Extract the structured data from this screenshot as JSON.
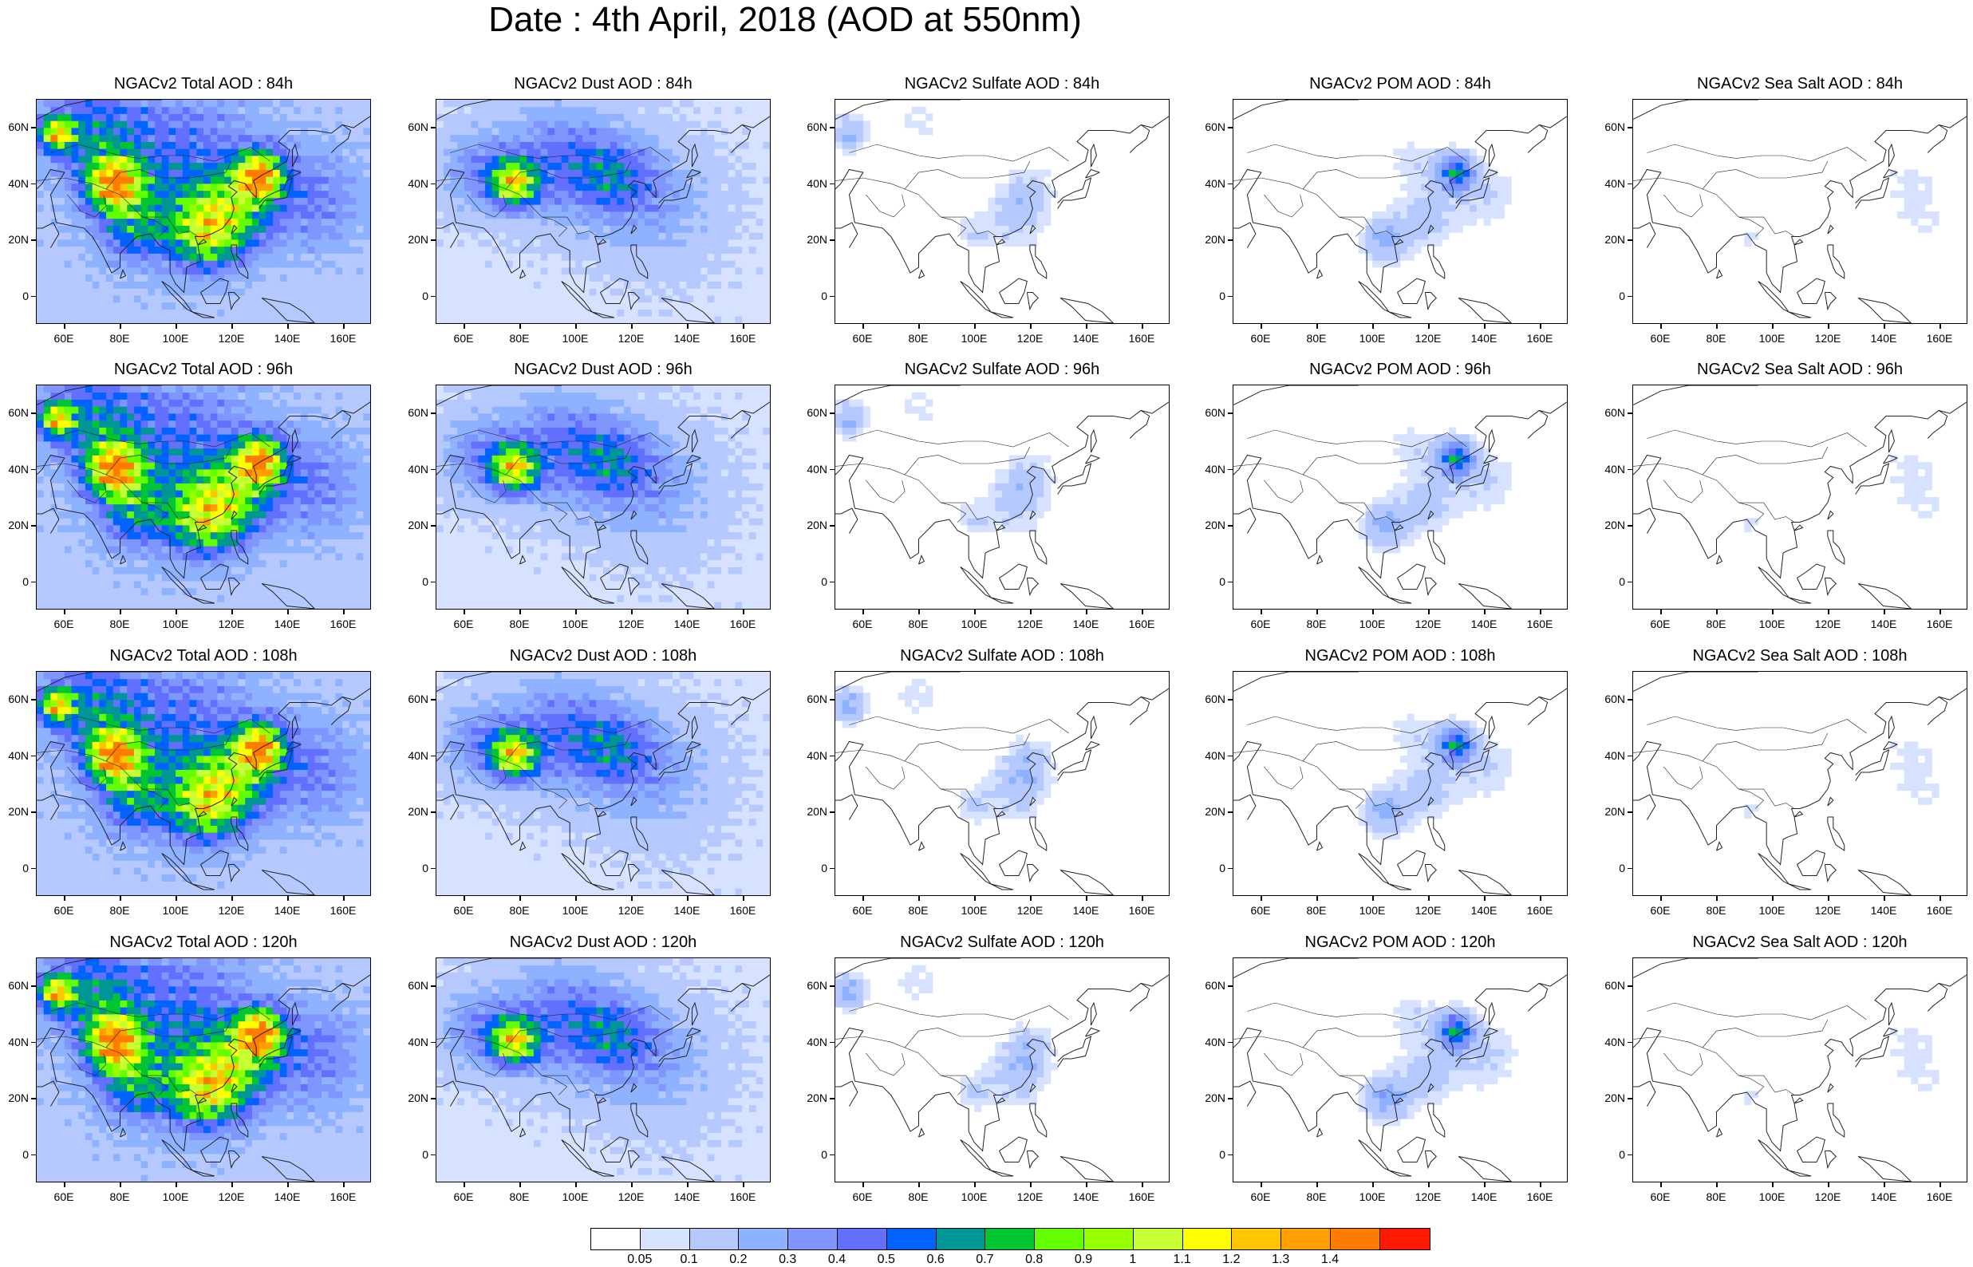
{
  "title": "Date : 4th April, 2018 (AOD at 550nm)",
  "panels": [
    [
      {
        "title": "NGACv2 Total AOD : 84h",
        "field": "total",
        "intensity": 1.0
      },
      {
        "title": "NGACv2 Dust AOD : 84h",
        "field": "dust",
        "intensity": 0.9
      },
      {
        "title": "NGACv2 Sulfate AOD : 84h",
        "field": "sulfate",
        "intensity": 0.5
      },
      {
        "title": "NGACv2 POM AOD : 84h",
        "field": "pom",
        "intensity": 0.7
      },
      {
        "title": "NGACv2 Sea Salt AOD : 84h",
        "field": "seasalt",
        "intensity": 0.4
      }
    ],
    [
      {
        "title": "NGACv2 Total AOD : 96h",
        "field": "total",
        "intensity": 1.0
      },
      {
        "title": "NGACv2 Dust AOD : 96h",
        "field": "dust",
        "intensity": 0.9
      },
      {
        "title": "NGACv2 Sulfate AOD : 96h",
        "field": "sulfate",
        "intensity": 0.5
      },
      {
        "title": "NGACv2 POM AOD : 96h",
        "field": "pom",
        "intensity": 0.7
      },
      {
        "title": "NGACv2 Sea Salt AOD : 96h",
        "field": "seasalt",
        "intensity": 0.4
      }
    ],
    [
      {
        "title": "NGACv2 Total AOD : 108h",
        "field": "total",
        "intensity": 1.0
      },
      {
        "title": "NGACv2 Dust AOD : 108h",
        "field": "dust",
        "intensity": 0.9
      },
      {
        "title": "NGACv2 Sulfate AOD : 108h",
        "field": "sulfate",
        "intensity": 0.55
      },
      {
        "title": "NGACv2 POM AOD : 108h",
        "field": "pom",
        "intensity": 0.7
      },
      {
        "title": "NGACv2 Sea Salt AOD : 108h",
        "field": "seasalt",
        "intensity": 0.4
      }
    ],
    [
      {
        "title": "NGACv2 Total AOD : 120h",
        "field": "total",
        "intensity": 1.05
      },
      {
        "title": "NGACv2 Dust AOD : 120h",
        "field": "dust",
        "intensity": 0.9
      },
      {
        "title": "NGACv2 Sulfate AOD : 120h",
        "field": "sulfate",
        "intensity": 0.55
      },
      {
        "title": "NGACv2 POM AOD : 120h",
        "field": "pom",
        "intensity": 0.75
      },
      {
        "title": "NGACv2 Sea Salt  AOD : 120h",
        "field": "seasalt",
        "intensity": 0.4
      }
    ]
  ],
  "lat_labels": [
    "60N",
    "40N",
    "20N",
    "0"
  ],
  "lon_labels": [
    "60E",
    "80E",
    "100E",
    "120E",
    "140E",
    "160E"
  ],
  "colorbar": {
    "colors": [
      "#ffffff",
      "#d6e2ff",
      "#b5c9ff",
      "#8eb2ff",
      "#7f96ff",
      "#6370ff",
      "#0063ff",
      "#009696",
      "#00c633",
      "#63ff00",
      "#96ff00",
      "#c6ff33",
      "#ffff00",
      "#ffc600",
      "#ffa000",
      "#ff7c00",
      "#ff1900"
    ],
    "labels": [
      "0.05",
      "0.1",
      "0.2",
      "0.3",
      "0.4",
      "0.5",
      "0.6",
      "0.7",
      "0.8",
      "0.9",
      "1",
      "1.1",
      "1.2",
      "1.3",
      "1.4"
    ]
  }
}
